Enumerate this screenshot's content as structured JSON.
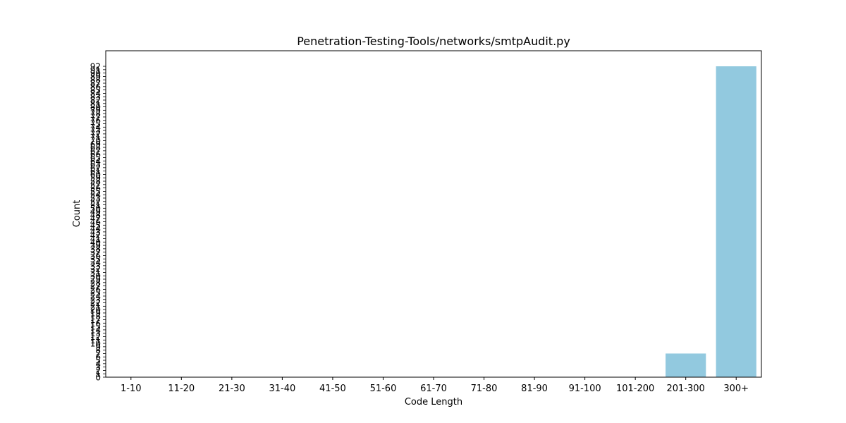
{
  "chart_data": {
    "type": "bar",
    "title": "Penetration-Testing-Tools/networks/smtpAudit.py",
    "xlabel": "Code Length",
    "ylabel": "Count",
    "categories": [
      "1-10",
      "11-20",
      "21-30",
      "31-40",
      "41-50",
      "51-60",
      "61-70",
      "71-80",
      "81-90",
      "91-100",
      "101-200",
      "201-300",
      "300+"
    ],
    "values": [
      0,
      0,
      0,
      0,
      0,
      0,
      0,
      0,
      0,
      0,
      0,
      7,
      92
    ],
    "ylim": [
      0,
      96.6
    ],
    "yticks": [
      0,
      1,
      2,
      3,
      4,
      5,
      6,
      7,
      8,
      9,
      10,
      11,
      12,
      13,
      14,
      15,
      16,
      17,
      18,
      19,
      20,
      21,
      22,
      23,
      24,
      25,
      26,
      27,
      28,
      29,
      30,
      31,
      32,
      33,
      34,
      35,
      36,
      37,
      38,
      39,
      40,
      41,
      42,
      43,
      44,
      45,
      46,
      47,
      48,
      49,
      50,
      51,
      52,
      53,
      54,
      55,
      56,
      57,
      58,
      59,
      60,
      61,
      62,
      63,
      64,
      65,
      66,
      67,
      68,
      69,
      70,
      71,
      72,
      73,
      74,
      75,
      76,
      77,
      78,
      79,
      80,
      81,
      82,
      83,
      84,
      85,
      86,
      87,
      88,
      89,
      90,
      91,
      92
    ],
    "bar_color": "#92c9df",
    "grid": false,
    "legend": "none"
  }
}
